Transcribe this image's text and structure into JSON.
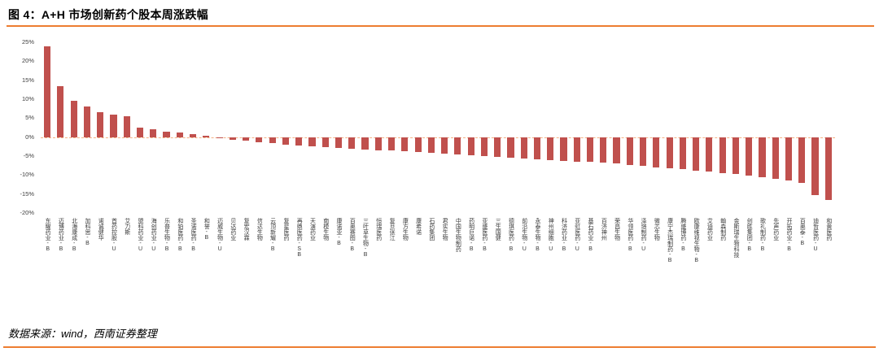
{
  "figure": {
    "title": "图 4：A+H 市场创新药个股本周涨跌幅",
    "source": "数据来源：wind，西南证券整理"
  },
  "style": {
    "bar_color": "#c0504d",
    "rule_color": "#ed7d31",
    "zero_line_color": "#f4b183",
    "tick_color": "#404040",
    "label_color": "#3a3a3a"
  },
  "chart_data": {
    "type": "bar",
    "title": "A+H 市场创新药个股本周涨跌幅",
    "xlabel": "",
    "ylabel": "",
    "ylim": [
      -20,
      25
    ],
    "yticks": [
      "25%",
      "20%",
      "15%",
      "10%",
      "5%",
      "0%",
      "-5%",
      "-10%",
      "-15%",
      "-20%"
    ],
    "grid": false,
    "legend": "none",
    "categories": [
      "东曜药业-B",
      "迈博药业-B",
      "北海康成-B",
      "加科思-B",
      "诺诚健华",
      "首药控股-U",
      "艾力斯",
      "盟科药业-U",
      "海创药业-U",
      "乐普生物-B",
      "和铂医药-B",
      "圣诺医药-B",
      "和誉-B",
      "迈威生物-U",
      "贝达药业",
      "复宏汉霖",
      "信达生物",
      "云顶新耀-B",
      "复星医药",
      "再鼎医药-SB",
      "天演药业",
      "南模生物",
      "康诺亚-B",
      "百奥赛图-B",
      "三叶草生物-B",
      "恒瑞医药",
      "复旦张江",
      "康方生物",
      "康希诺",
      "石药集团",
      "君实生物",
      "中国生物制药",
      "药明巨诺-B",
      "亚盛医药-B",
      "三生国健",
      "德琪医药-B",
      "前沿生物-U",
      "永泰生物-B",
      "神州细胞-U",
      "科济药业-B",
      "亚虹医药-U",
      "基石药业-B",
      "百济神州",
      "荣昌生物",
      "华领医药-B",
      "泽璟制药-U",
      "微芯生物",
      "康宁杰瑞制药-B",
      "腾盛博药-B",
      "欧康维视生物-B",
      "艾迪药业",
      "翰森制药",
      "金斯瑞生物科技",
      "创胜集团-B",
      "歌礼制药-B",
      "先声药业",
      "开拓药业-B",
      "百奥泰-B",
      "迪哲医药-U",
      "和黄医药"
    ],
    "values": [
      24.0,
      13.5,
      9.5,
      8.0,
      6.5,
      6.0,
      5.5,
      2.5,
      2.0,
      1.5,
      1.2,
      0.8,
      0.4,
      -0.3,
      -0.7,
      -1.0,
      -1.3,
      -1.6,
      -1.9,
      -2.2,
      -2.4,
      -2.6,
      -2.8,
      -3.0,
      -3.2,
      -3.4,
      -3.6,
      -3.8,
      -4.0,
      -4.2,
      -4.4,
      -4.6,
      -4.8,
      -5.0,
      -5.2,
      -5.4,
      -5.6,
      -5.8,
      -6.0,
      -6.2,
      -6.4,
      -6.6,
      -6.8,
      -7.0,
      -7.3,
      -7.6,
      -7.9,
      -8.2,
      -8.5,
      -8.8,
      -9.1,
      -9.4,
      -9.8,
      -10.2,
      -10.6,
      -11.0,
      -11.5,
      -12.0,
      -15.2,
      -16.6
    ]
  }
}
